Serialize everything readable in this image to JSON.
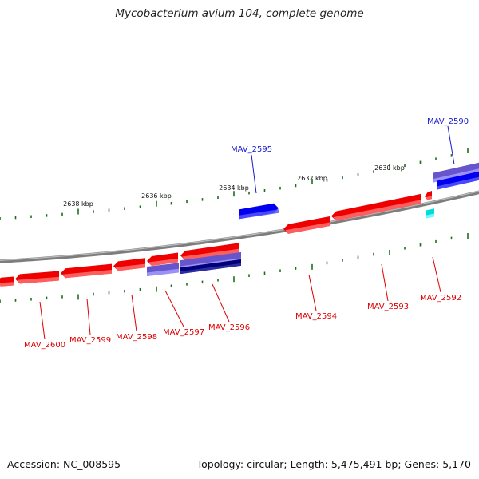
{
  "title": "Mycobacterium avium 104, complete genome",
  "footer": {
    "accession": "Accession: NC_008595",
    "summary": "Topology: circular; Length: 5,475,491 bp; Genes: 5,170"
  },
  "colors": {
    "backbone": "#888888",
    "tick": "#1e6e1e",
    "forward_gene": "#ef0000",
    "forward_gene_light": "#ff7070",
    "reverse_label": "#1a1acc",
    "minus_gene": "#0000ee",
    "lavender": "#6655cc",
    "navy": "#000077",
    "cyan": "#00dddd"
  },
  "scale_labels": [
    "2638 kbp",
    "2636 kbp",
    "2634 kbp",
    "2632 kbp",
    "2630 kbp"
  ],
  "gene_labels": [
    {
      "name": "MAV_2590",
      "strand": "top"
    },
    {
      "name": "MAV_2595",
      "strand": "top"
    },
    {
      "name": "MAV_2592",
      "strand": "bottom"
    },
    {
      "name": "MAV_2593",
      "strand": "bottom"
    },
    {
      "name": "MAV_2594",
      "strand": "bottom"
    },
    {
      "name": "MAV_2596",
      "strand": "bottom"
    },
    {
      "name": "MAV_2597",
      "strand": "bottom"
    },
    {
      "name": "MAV_2598",
      "strand": "bottom"
    },
    {
      "name": "MAV_2599",
      "strand": "bottom"
    },
    {
      "name": "MAV_2600",
      "strand": "bottom"
    }
  ]
}
